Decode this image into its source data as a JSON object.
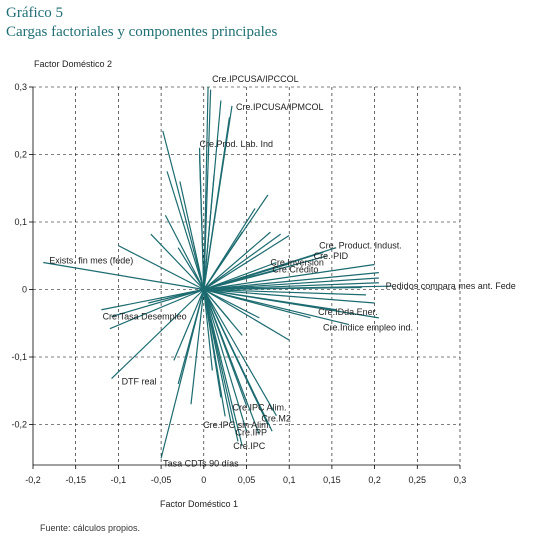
{
  "header": {
    "label": "Gráfico 5",
    "title": "Cargas factoriales y componentes principales"
  },
  "source": "Fuente: cálculos propios.",
  "chart_data": {
    "type": "scatter",
    "style": "biplot-vectors-from-origin",
    "xlabel": "Factor Doméstico 1",
    "ylabel": "Factor Doméstico 2",
    "xlim": [
      -0.2,
      0.3
    ],
    "ylim": [
      -0.26,
      0.3
    ],
    "xticks": [
      -0.2,
      -0.15,
      -0.1,
      -0.05,
      0,
      0.05,
      0.1,
      0.15,
      0.2,
      0.25,
      0.3
    ],
    "xtick_labels": [
      "-0,2",
      "-0,15",
      "-0,1",
      "-0,05",
      "0",
      "0,05",
      "0,1",
      "0,15",
      "0,2",
      "0,25",
      "0,3"
    ],
    "yticks": [
      0.3,
      0.2,
      0.1,
      0,
      -0.1,
      -0.2
    ],
    "ytick_labels": [
      "0,3",
      "0,2",
      "0,1",
      "0",
      "-0,1",
      "-0,2"
    ],
    "grid": true,
    "line_color": "#1c6b70",
    "labeled_vectors": [
      {
        "label": "Cre.IPCUSA/IPCCOL",
        "x": 0.005,
        "y": 0.3
      },
      {
        "label": "Cre.IPCUSA/IPMCOL",
        "x": 0.033,
        "y": 0.272
      },
      {
        "label": "Cre.Prod. Lab. Ind",
        "x": -0.005,
        "y": 0.21
      },
      {
        "label": "Exists. fin mes (fede)",
        "x": -0.188,
        "y": 0.04
      },
      {
        "label": "Cre. Product. Indust.",
        "x": 0.155,
        "y": 0.062
      },
      {
        "label": "Cre. PID",
        "x": 0.145,
        "y": 0.05
      },
      {
        "label": "Cre.Inversion",
        "x": 0.085,
        "y": 0.04
      },
      {
        "label": "Cre.Crédito",
        "x": 0.085,
        "y": 0.028
      },
      {
        "label": "Pedidos compara mes ant. Fede",
        "x": 0.22,
        "y": 0.005
      },
      {
        "label": "Cre.IDda.Ener.",
        "x": 0.155,
        "y": -0.03
      },
      {
        "label": "Cre.Índice empleo ind.",
        "x": 0.17,
        "y": -0.052
      },
      {
        "label": "Cre.Tasa Desempleo",
        "x": -0.108,
        "y": -0.04
      },
      {
        "label": "DTF real",
        "x": -0.108,
        "y": -0.132
      },
      {
        "label": "Cre.IPC Alim.",
        "x": 0.05,
        "y": -0.172
      },
      {
        "label": "Cre.M2",
        "x": 0.085,
        "y": -0.187
      },
      {
        "label": "Cre.IPC sin Alim.",
        "x": 0.032,
        "y": -0.198
      },
      {
        "label": "Cre.IPP",
        "x": 0.05,
        "y": -0.21
      },
      {
        "label": "Cre.IPC",
        "x": 0.045,
        "y": -0.232
      },
      {
        "label": "Tasa CDTs 90 días",
        "x": -0.05,
        "y": -0.25
      }
    ],
    "unlabeled_vectors": [
      {
        "x": -0.048,
        "y": 0.235
      },
      {
        "x": -0.043,
        "y": 0.175
      },
      {
        "x": -0.028,
        "y": 0.16
      },
      {
        "x": -0.005,
        "y": 0.2
      },
      {
        "x": 0.008,
        "y": 0.296
      },
      {
        "x": 0.012,
        "y": 0.17
      },
      {
        "x": 0.02,
        "y": 0.28
      },
      {
        "x": 0.03,
        "y": 0.255
      },
      {
        "x": 0.075,
        "y": 0.14
      },
      {
        "x": 0.045,
        "y": 0.085
      },
      {
        "x": 0.06,
        "y": 0.12
      },
      {
        "x": 0.078,
        "y": 0.085
      },
      {
        "x": 0.09,
        "y": 0.082
      },
      {
        "x": 0.1,
        "y": 0.08
      },
      {
        "x": -0.062,
        "y": 0.082
      },
      {
        "x": -0.045,
        "y": 0.11
      },
      {
        "x": -0.1,
        "y": 0.065
      },
      {
        "x": -0.03,
        "y": 0.062
      },
      {
        "x": 0.14,
        "y": 0.055
      },
      {
        "x": 0.1,
        "y": 0.038
      },
      {
        "x": 0.2,
        "y": 0.037
      },
      {
        "x": 0.205,
        "y": 0.025
      },
      {
        "x": 0.205,
        "y": 0.017
      },
      {
        "x": 0.205,
        "y": 0.01
      },
      {
        "x": 0.185,
        "y": 0.003
      },
      {
        "x": 0.19,
        "y": -0.008
      },
      {
        "x": 0.2,
        "y": -0.02
      },
      {
        "x": 0.205,
        "y": -0.042
      },
      {
        "x": 0.125,
        "y": -0.042
      },
      {
        "x": 0.1,
        "y": -0.075
      },
      {
        "x": 0.065,
        "y": -0.042
      },
      {
        "x": 0.045,
        "y": -0.068
      },
      {
        "x": 0.03,
        "y": -0.045
      },
      {
        "x": -0.11,
        "y": -0.058
      },
      {
        "x": -0.12,
        "y": -0.03
      },
      {
        "x": -0.065,
        "y": -0.02
      },
      {
        "x": -0.035,
        "y": -0.105
      },
      {
        "x": -0.015,
        "y": -0.17
      },
      {
        "x": 0.01,
        "y": -0.12
      },
      {
        "x": 0.02,
        "y": -0.16
      },
      {
        "x": 0.025,
        "y": -0.188
      },
      {
        "x": 0.06,
        "y": -0.16
      },
      {
        "x": 0.075,
        "y": -0.2
      },
      {
        "x": 0.065,
        "y": -0.215
      },
      {
        "x": 0.04,
        "y": -0.225
      },
      {
        "x": -0.03,
        "y": -0.14
      },
      {
        "x": 0.08,
        "y": -0.21
      }
    ]
  }
}
